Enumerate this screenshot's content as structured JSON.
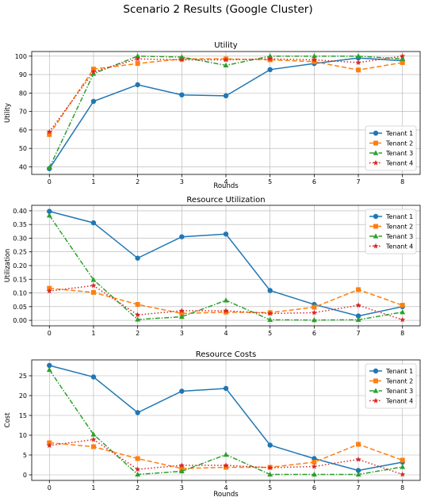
{
  "suptitle": "Scenario 2 Results (Google Cluster)",
  "chart_data": [
    {
      "type": "line",
      "title": "Utility",
      "xlabel": "Rounds",
      "ylabel": "Utility",
      "x": [
        0,
        1,
        2,
        3,
        4,
        5,
        6,
        7,
        8
      ],
      "xlim": [
        -0.4,
        8.4
      ],
      "ylim": [
        35.9,
        102.5
      ],
      "yticks": [
        40,
        50,
        60,
        70,
        80,
        90,
        100
      ],
      "ytick_labels": [
        "40",
        "50",
        "60",
        "70",
        "80",
        "90",
        "100"
      ],
      "grid": true,
      "legend_position": "lower-right",
      "series": [
        {
          "name": "Tenant 1",
          "values": [
            39,
            75.5,
            84.5,
            79,
            78.5,
            92.7,
            96,
            99,
            97.5
          ]
        },
        {
          "name": "Tenant 2",
          "values": [
            57.5,
            93,
            96,
            98.5,
            98.5,
            98,
            97,
            92.5,
            96.5
          ]
        },
        {
          "name": "Tenant 3",
          "values": [
            39.5,
            90.5,
            100,
            99.5,
            95,
            100,
            100,
            100,
            98.5
          ]
        },
        {
          "name": "Tenant 4",
          "values": [
            59,
            91.5,
            98.5,
            98,
            98,
            98.5,
            98,
            96.5,
            100
          ]
        }
      ]
    },
    {
      "type": "line",
      "title": "Resource Utilization",
      "xlabel": "",
      "ylabel": "Utilization",
      "x": [
        0,
        1,
        2,
        3,
        4,
        5,
        6,
        7,
        8
      ],
      "xlim": [
        -0.4,
        8.4
      ],
      "ylim": [
        -0.02,
        0.42
      ],
      "yticks": [
        0,
        0.05,
        0.1,
        0.15,
        0.2,
        0.25,
        0.3,
        0.35,
        0.4
      ],
      "ytick_labels": [
        "0.00",
        "0.05",
        "0.10",
        "0.15",
        "0.20",
        "0.25",
        "0.30",
        "0.35",
        "0.40"
      ],
      "grid": true,
      "legend_position": "top-right",
      "series": [
        {
          "name": "Tenant 1",
          "values": [
            0.398,
            0.356,
            0.227,
            0.305,
            0.315,
            0.109,
            0.058,
            0.016,
            0.05
          ]
        },
        {
          "name": "Tenant 2",
          "values": [
            0.117,
            0.102,
            0.058,
            0.025,
            0.03,
            0.028,
            0.048,
            0.112,
            0.055
          ]
        },
        {
          "name": "Tenant 3",
          "values": [
            0.383,
            0.148,
            0.003,
            0.013,
            0.073,
            0.002,
            0.001,
            0.002,
            0.03
          ]
        },
        {
          "name": "Tenant 4",
          "values": [
            0.107,
            0.127,
            0.02,
            0.035,
            0.035,
            0.025,
            0.028,
            0.055,
            0.002
          ]
        }
      ]
    },
    {
      "type": "line",
      "title": "Resource Costs",
      "xlabel": "Rounds",
      "ylabel": "Cost",
      "x": [
        0,
        1,
        2,
        3,
        4,
        5,
        6,
        7,
        8
      ],
      "xlim": [
        -0.4,
        8.4
      ],
      "ylim": [
        -1.4,
        29
      ],
      "yticks": [
        0,
        5,
        10,
        15,
        20,
        25
      ],
      "ytick_labels": [
        "0",
        "5",
        "10",
        "15",
        "20",
        "25"
      ],
      "grid": true,
      "legend_position": "top-right",
      "series": [
        {
          "name": "Tenant 1",
          "values": [
            27.6,
            24.7,
            15.7,
            21.1,
            21.8,
            7.5,
            4.1,
            1.1,
            3.2
          ]
        },
        {
          "name": "Tenant 2",
          "values": [
            8.1,
            7.1,
            4.1,
            1.6,
            1.9,
            1.9,
            3.2,
            7.7,
            3.7
          ]
        },
        {
          "name": "Tenant 3",
          "values": [
            26.5,
            10.2,
            0.1,
            0.9,
            5.1,
            0.1,
            0.1,
            0.1,
            2
          ]
        },
        {
          "name": "Tenant 4",
          "values": [
            7.4,
            8.9,
            1.4,
            2.4,
            2.4,
            1.8,
            2.1,
            3.9,
            0.1
          ]
        }
      ]
    }
  ],
  "series_styles": [
    {
      "color": "#1f77b4",
      "marker": "circle",
      "dash": ""
    },
    {
      "color": "#ff7f0e",
      "marker": "square",
      "dash": "6,3"
    },
    {
      "color": "#2ca02c",
      "marker": "triangle",
      "dash": "6,2,1.5,2"
    },
    {
      "color": "#d62728",
      "marker": "star",
      "dash": "1.5,2.5"
    }
  ]
}
